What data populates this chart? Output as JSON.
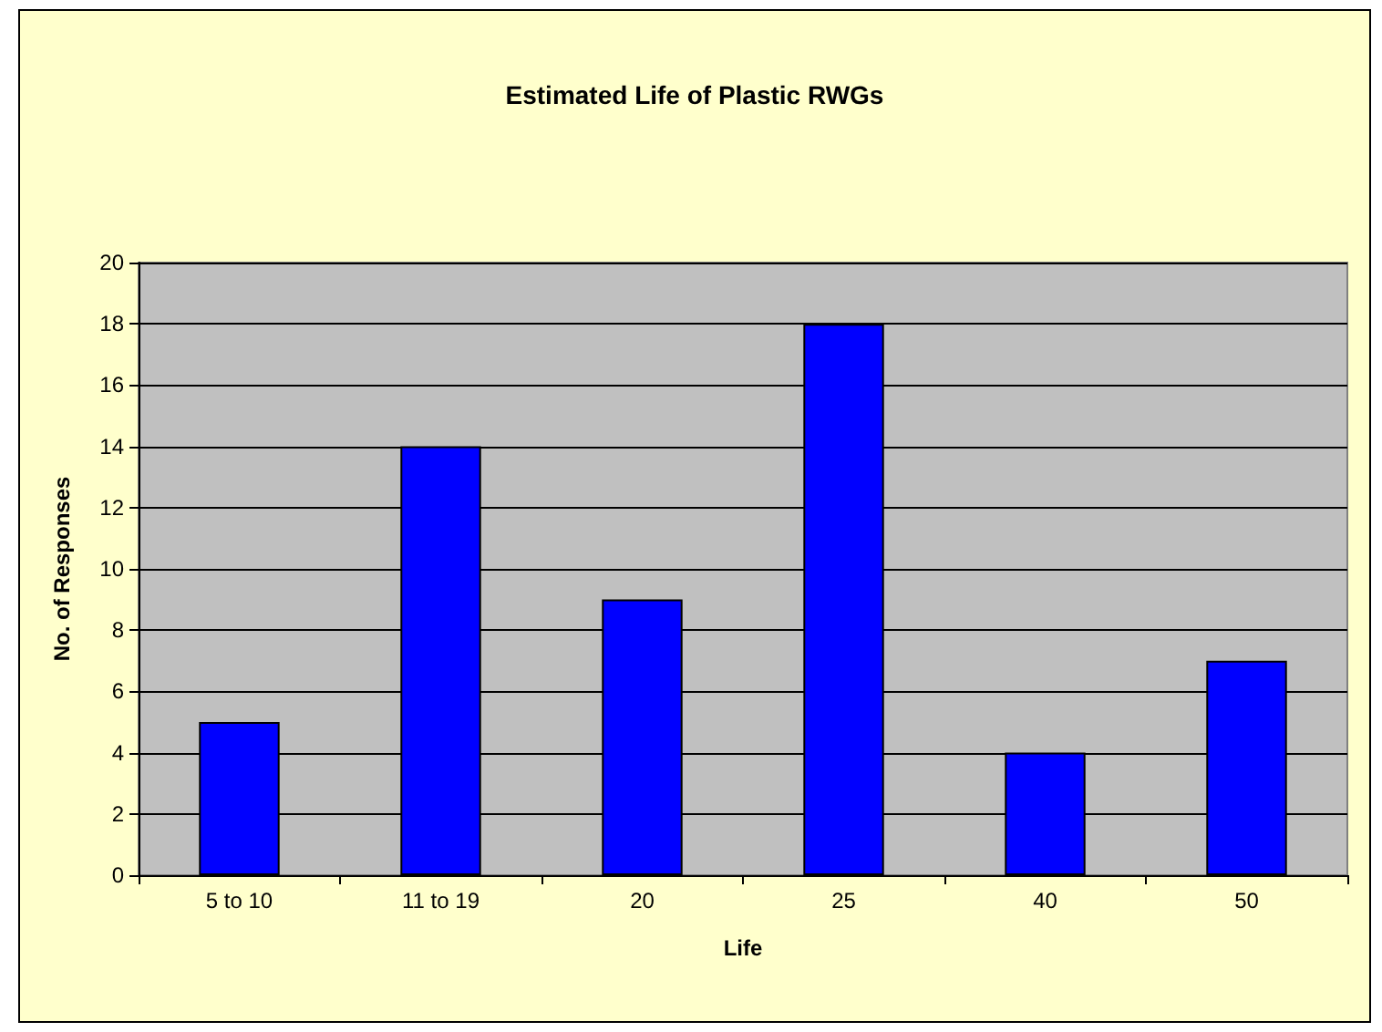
{
  "chart_data": {
    "type": "bar",
    "title": "Estimated Life of Plastic RWGs",
    "xlabel": "Life",
    "ylabel": "No. of Responses",
    "categories": [
      "5 to 10",
      "11 to 19",
      "20",
      "25",
      "40",
      "50"
    ],
    "values": [
      5,
      14,
      9,
      18,
      4,
      7
    ],
    "color": "#0000ff",
    "ylim": [
      0,
      20
    ],
    "yticks": [
      0,
      2,
      4,
      6,
      8,
      10,
      12,
      14,
      16,
      18,
      20
    ],
    "grid": "y"
  }
}
